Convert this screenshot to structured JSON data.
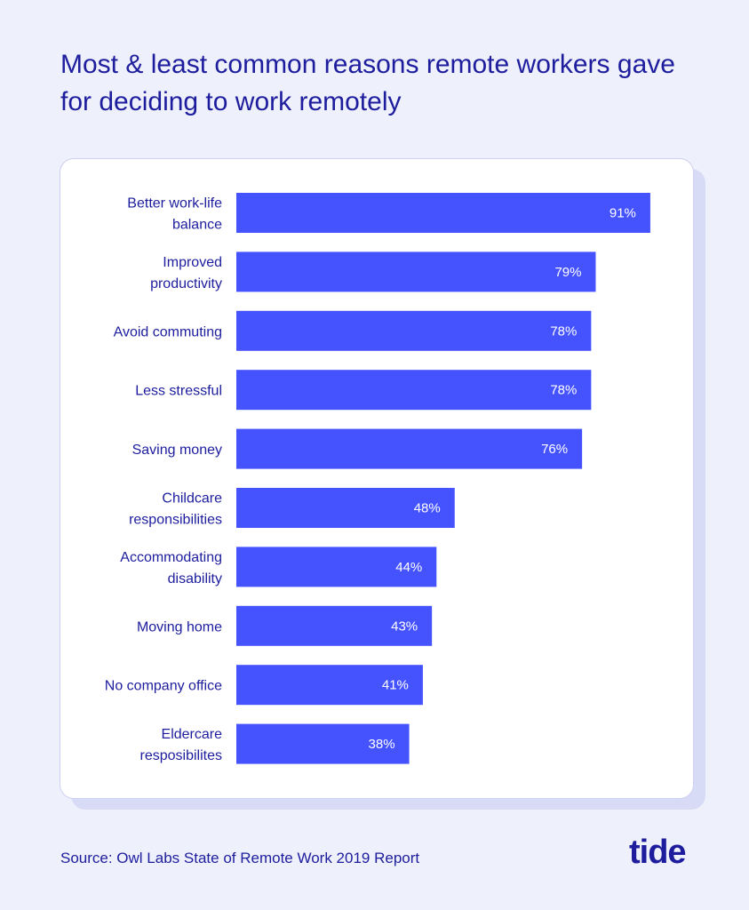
{
  "header": {
    "title": "Most & least common reasons remote workers gave for deciding to work remotely"
  },
  "chart_data": {
    "type": "bar",
    "orientation": "horizontal",
    "categories": [
      [
        "Better work-life",
        "balance"
      ],
      [
        "Improved",
        "productivity"
      ],
      [
        "Avoid commuting"
      ],
      [
        "Less stressful"
      ],
      [
        "Saving money"
      ],
      [
        "Childcare",
        "responsibilities"
      ],
      [
        "Accommodating",
        "disability"
      ],
      [
        "Moving home"
      ],
      [
        "No company office"
      ],
      [
        "Eldercare",
        "resposibilites"
      ]
    ],
    "values": [
      91,
      79,
      78,
      78,
      76,
      48,
      44,
      43,
      41,
      38
    ],
    "value_labels": [
      "91%",
      "79%",
      "78%",
      "78%",
      "76%",
      "48%",
      "44%",
      "43%",
      "41%",
      "38%"
    ],
    "xlim": [
      0,
      100
    ],
    "grid": false,
    "bar_color": "#4553ff",
    "label_color": "#1d1d9e",
    "value_label_color": "#ffffff"
  },
  "footer": {
    "source": "Source: Owl Labs State of Remote Work 2019 Report",
    "logo_text": "tide"
  },
  "colors": {
    "background": "#eef0fb",
    "card": "#ffffff",
    "accent": "#1d1d9e",
    "bar": "#4553ff"
  }
}
